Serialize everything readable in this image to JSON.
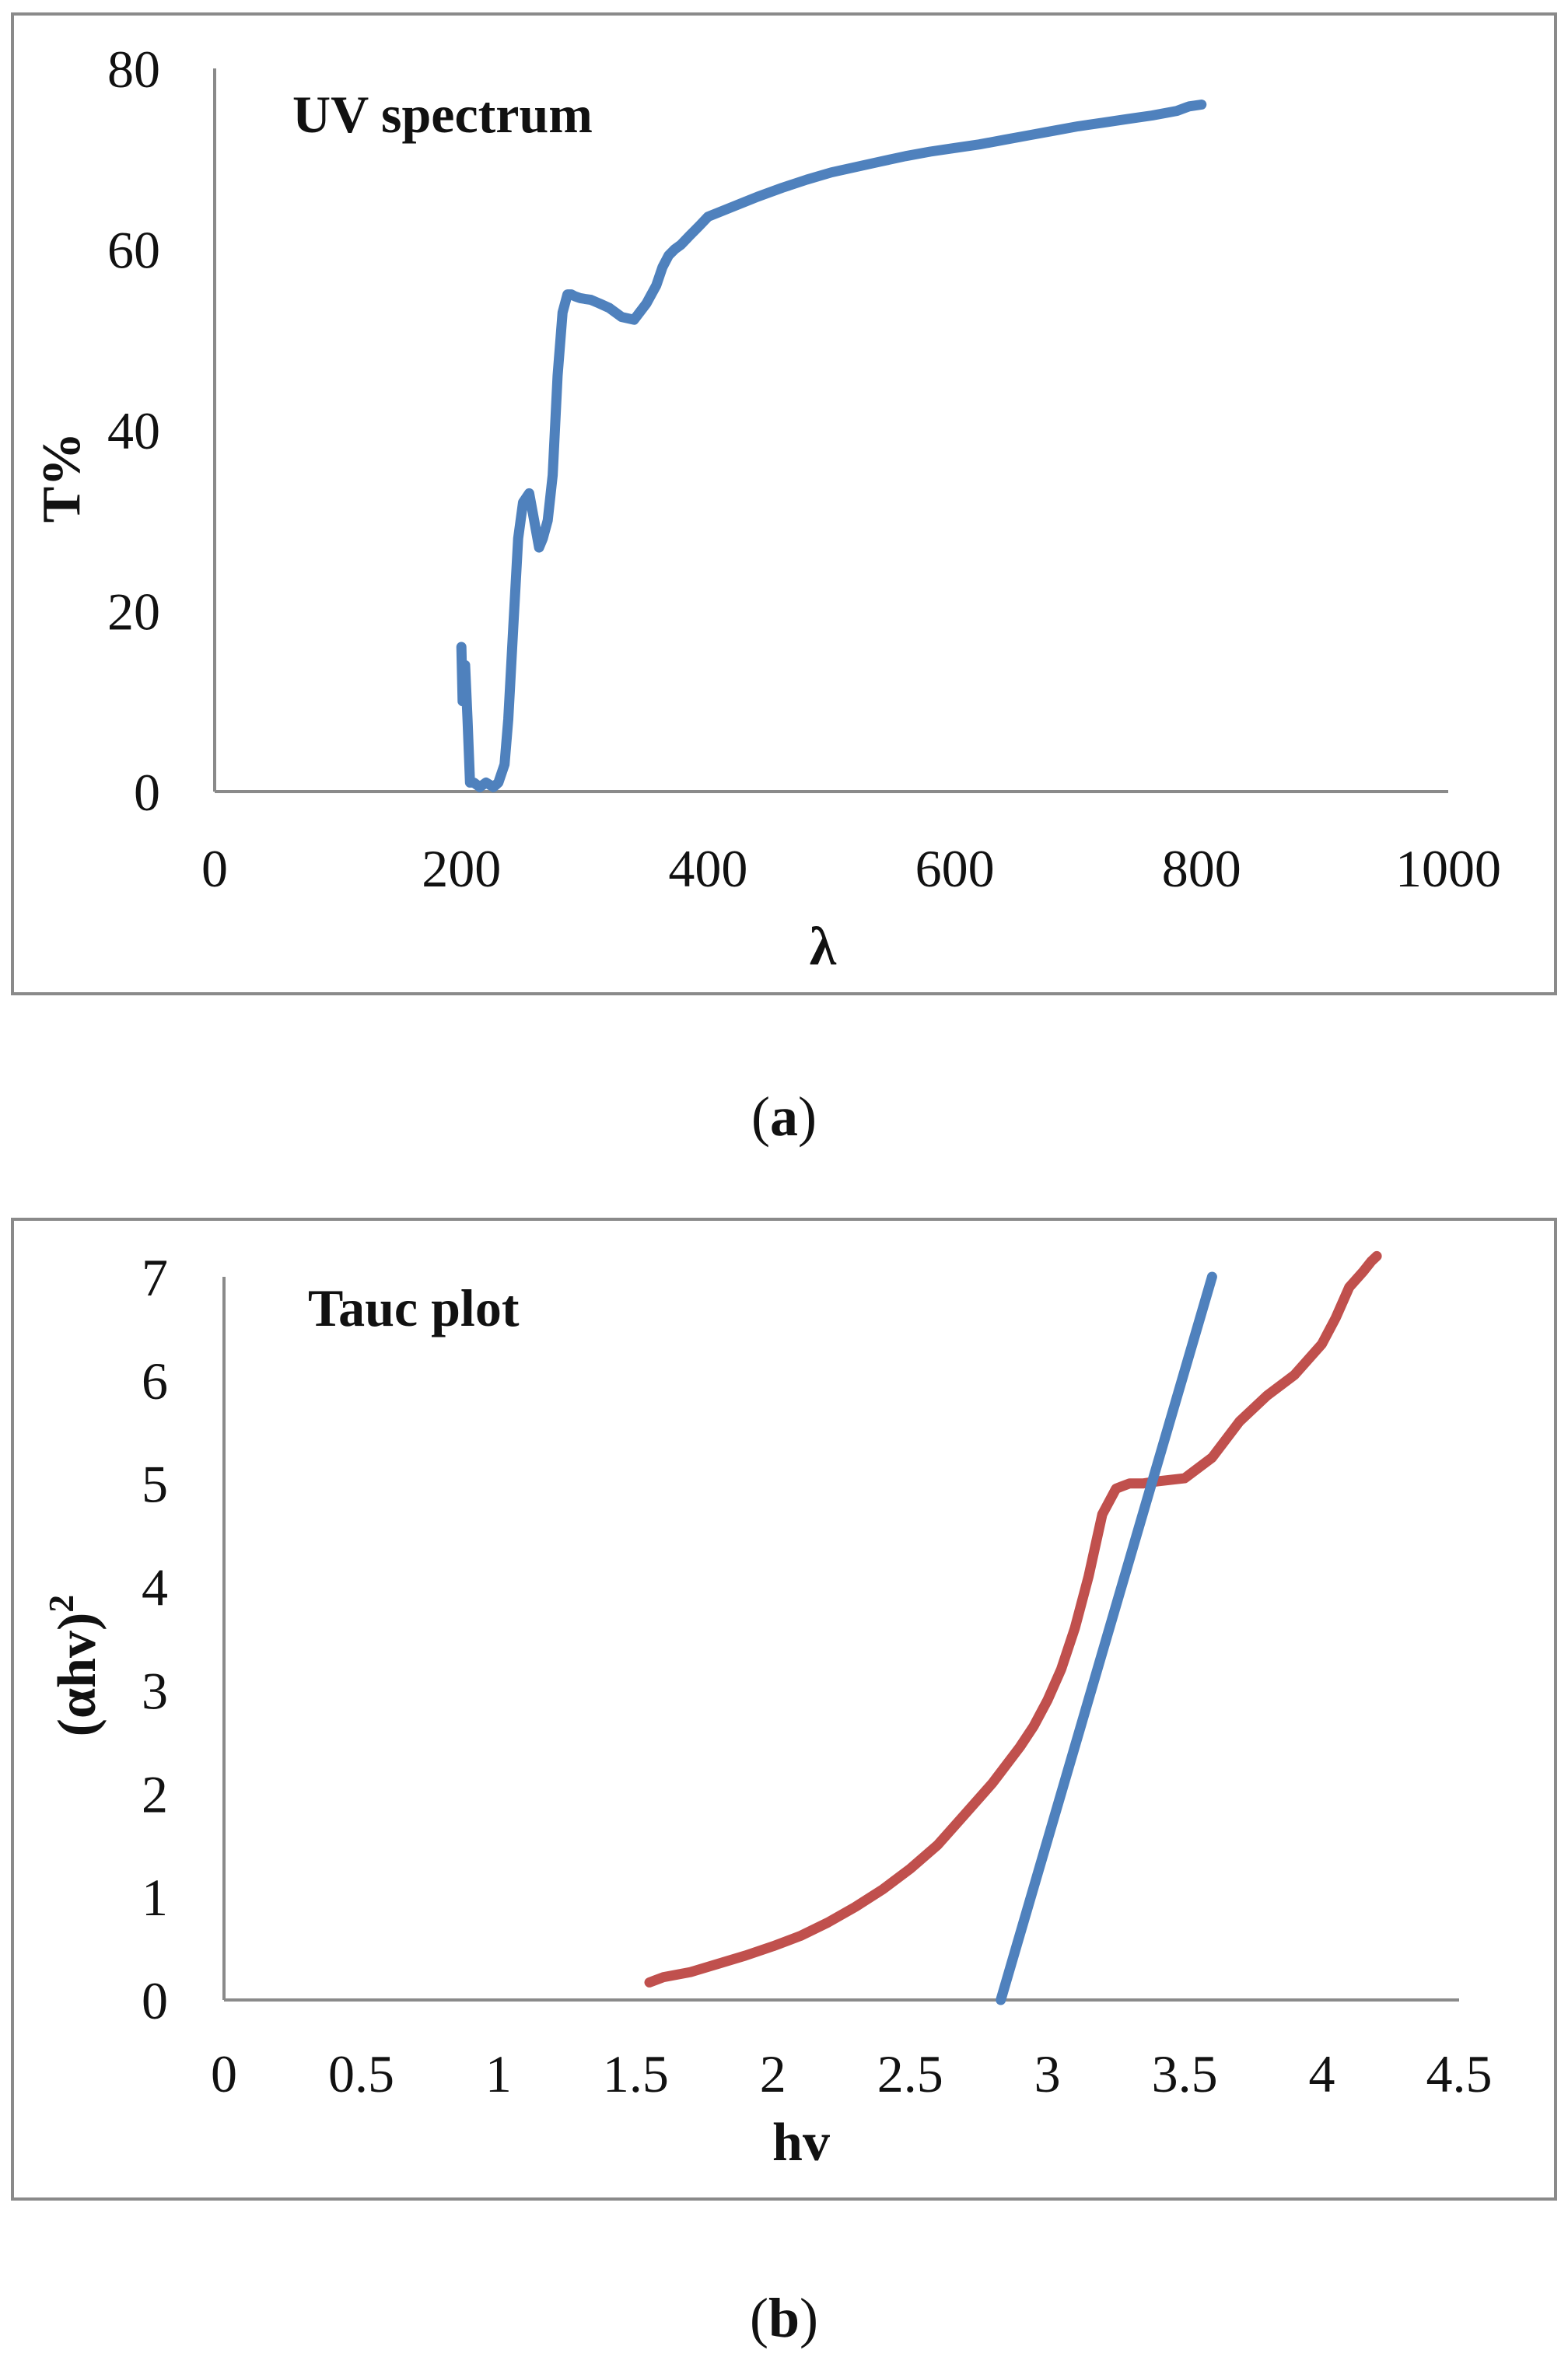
{
  "chart_data": [
    {
      "type": "line",
      "panel_label": "a",
      "title": "UV spectrum",
      "xlabel": "λ",
      "ylabel": "T%",
      "xlim": [
        0,
        1000
      ],
      "ylim": [
        0,
        80
      ],
      "x_ticks": [
        "0",
        "200",
        "400",
        "600",
        "800",
        "1000"
      ],
      "y_ticks": [
        "0",
        "20",
        "40",
        "60",
        "80"
      ],
      "grid": false,
      "series": [
        {
          "color": "#4f81bd",
          "x": [
            200,
            201,
            203,
            205,
            207,
            210,
            215,
            220,
            226,
            230,
            235,
            238,
            242,
            246,
            250,
            255,
            259,
            263,
            266,
            270,
            274,
            278,
            282,
            286,
            289,
            292,
            296,
            300,
            305,
            312,
            320,
            330,
            340,
            350,
            358,
            363,
            368,
            373,
            378,
            385,
            393,
            400,
            420,
            440,
            460,
            480,
            500,
            520,
            540,
            560,
            580,
            600,
            620,
            640,
            660,
            680,
            700,
            720,
            740,
            760,
            780,
            790,
            800
          ],
          "y": [
            16,
            10,
            14,
            8,
            1,
            1,
            0.5,
            1,
            0.5,
            1,
            3,
            8,
            18,
            28,
            32,
            33,
            30,
            27,
            28,
            30,
            35,
            46,
            53,
            55,
            55,
            54.8,
            54.6,
            54.5,
            54.4,
            54,
            53.5,
            52.5,
            52.2,
            54,
            56,
            58,
            59.3,
            60,
            60.5,
            61.5,
            62.6,
            63.6,
            64.7,
            65.8,
            66.8,
            67.7,
            68.5,
            69.1,
            69.7,
            70.3,
            70.8,
            71.2,
            71.6,
            72.1,
            72.6,
            73.1,
            73.6,
            74,
            74.4,
            74.8,
            75.3,
            75.8,
            76
          ]
        }
      ]
    },
    {
      "type": "line",
      "panel_label": "b",
      "title": "Tauc plot",
      "xlabel": "hv",
      "ylabel_base": "(αhv)",
      "ylabel_sup": "2",
      "xlim": [
        0,
        4.5
      ],
      "ylim": [
        0,
        7
      ],
      "x_ticks": [
        "0",
        "0.5",
        "1",
        "1.5",
        "2",
        "2.5",
        "3",
        "3.5",
        "4",
        "4.5"
      ],
      "y_ticks": [
        "0",
        "1",
        "2",
        "3",
        "4",
        "5",
        "6",
        "7"
      ],
      "grid": false,
      "series": [
        {
          "color": "#c0504d",
          "x": [
            1.55,
            1.6,
            1.7,
            1.8,
            1.9,
            2.0,
            2.1,
            2.2,
            2.3,
            2.4,
            2.5,
            2.6,
            2.7,
            2.8,
            2.9,
            2.95,
            3.0,
            3.05,
            3.1,
            3.15,
            3.2,
            3.25,
            3.27,
            3.3,
            3.35,
            3.4,
            3.5,
            3.6,
            3.7,
            3.8,
            3.9,
            4.0,
            4.05,
            4.1,
            4.15,
            4.18,
            4.2
          ],
          "y": [
            0.17,
            0.22,
            0.27,
            0.35,
            0.43,
            0.52,
            0.62,
            0.75,
            0.9,
            1.07,
            1.27,
            1.5,
            1.8,
            2.1,
            2.45,
            2.65,
            2.9,
            3.2,
            3.6,
            4.1,
            4.7,
            4.95,
            4.97,
            5.0,
            5.0,
            5.02,
            5.05,
            5.25,
            5.6,
            5.85,
            6.05,
            6.35,
            6.6,
            6.9,
            7.05,
            7.15,
            7.2
          ]
        },
        {
          "color": "#4f81bd",
          "x": [
            2.83,
            3.6
          ],
          "y": [
            0,
            7
          ]
        }
      ]
    }
  ]
}
